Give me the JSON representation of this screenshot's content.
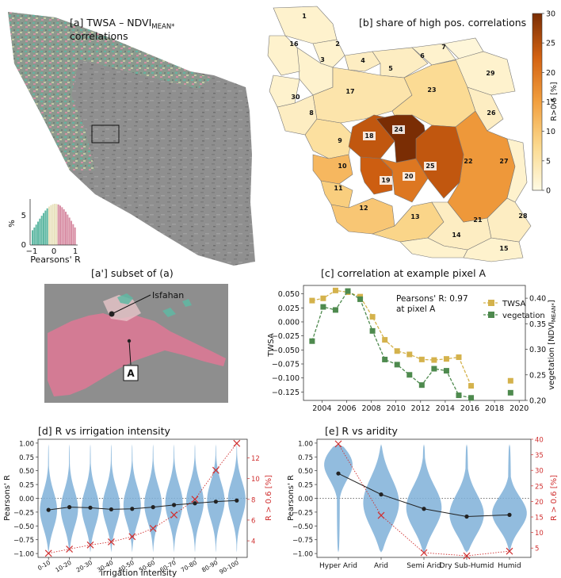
{
  "panels": {
    "a": {
      "title": "[a] TWSA – NDVI",
      "sub": "MEAN*",
      "line2": "correlations",
      "hist_ylabel": "%",
      "hist_ytick": "5",
      "hist_y0": "0",
      "hist_xticks": [
        "−1",
        "0",
        "1"
      ],
      "hist_xlabel": "Pearsons' R"
    },
    "b": {
      "title": "[b] share of high pos. correlations",
      "cbar_label": "R>0.6 [%]",
      "cbar_ticks": [
        "0",
        "5",
        "10",
        "15",
        "20",
        "25",
        "30"
      ]
    },
    "a2": {
      "title": "[a'] subset of (a)",
      "city": "Isfahan",
      "pixel": "A"
    },
    "c": {
      "title": "[c] correlation at example pixel A",
      "annot1": "Pearsons' R: 0.97",
      "annot2": "at pixel A",
      "ylabel": "TWSA",
      "y2label": "vegetation [NDVI",
      "y2sub": "MEAN*",
      "y2end": "]"
    },
    "d": {
      "title": "[d] R vs irrigation intensity",
      "ylabel": "Pearsons' R",
      "y2label": "R > 0.6 [%]",
      "xlabel": "irrigation intensity"
    },
    "e": {
      "title": "[e] R vs aridity",
      "ylabel": "Pearsons' R",
      "y2label": "R > 0.6 [%]"
    }
  },
  "colors": {
    "twsa": "#d4b24c",
    "veg": "#4e8a4e",
    "violin": "#7fb0d8",
    "median": "#222222",
    "share": "#d03030"
  },
  "regions": [
    {
      "id": "1",
      "v": 2
    },
    {
      "id": "2",
      "v": 2
    },
    {
      "id": "3",
      "v": 2
    },
    {
      "id": "4",
      "v": 3
    },
    {
      "id": "5",
      "v": 3
    },
    {
      "id": "6",
      "v": 2
    },
    {
      "id": "7",
      "v": 1
    },
    {
      "id": "8",
      "v": 3
    },
    {
      "id": "9",
      "v": 6
    },
    {
      "id": "10",
      "v": 12
    },
    {
      "id": "11",
      "v": 9
    },
    {
      "id": "12",
      "v": 10
    },
    {
      "id": "13",
      "v": 8
    },
    {
      "id": "14",
      "v": 2
    },
    {
      "id": "15",
      "v": 2
    },
    {
      "id": "16",
      "v": 2
    },
    {
      "id": "17",
      "v": 5
    },
    {
      "id": "18",
      "v": 24
    },
    {
      "id": "19",
      "v": 23
    },
    {
      "id": "20",
      "v": 20
    },
    {
      "id": "21",
      "v": 3
    },
    {
      "id": "22",
      "v": 16
    },
    {
      "id": "23",
      "v": 7
    },
    {
      "id": "24",
      "v": 30
    },
    {
      "id": "25",
      "v": 24
    },
    {
      "id": "26",
      "v": 3
    },
    {
      "id": "27",
      "v": 2
    },
    {
      "id": "28",
      "v": 3
    },
    {
      "id": "29",
      "v": 2
    },
    {
      "id": "30",
      "v": 2
    }
  ],
  "chart_data": [
    {
      "type": "line",
      "panel": "c",
      "title": "[c] correlation at example pixel A",
      "xticks": [
        2004,
        2006,
        2008,
        2010,
        2012,
        2014,
        2016,
        2018,
        2020
      ],
      "xlim": [
        2002.5,
        2020.5
      ],
      "ylabel": "TWSA",
      "ylim": [
        -0.14,
        0.065
      ],
      "yticks": [
        -0.125,
        -0.1,
        -0.075,
        -0.05,
        -0.025,
        0.0,
        0.025,
        0.05
      ],
      "ytick_labels": [
        "−0.125",
        "−0.100",
        "−0.075",
        "−0.050",
        "−0.025",
        "0.000",
        "0.025",
        "0.050"
      ],
      "y2label": "vegetation",
      "y2lim": [
        0.2,
        0.425
      ],
      "y2ticks": [
        0.2,
        0.25,
        0.3,
        0.35,
        0.4
      ],
      "y2tick_labels": [
        "0.20",
        "0.25",
        "0.30",
        "0.35",
        "0.40"
      ],
      "legend": "top-right",
      "series": [
        {
          "name": "TWSA",
          "axis": "left",
          "segments": [
            {
              "x": [
                2003.2,
                2004.1,
                2005.1,
                2006.1,
                2007.1,
                2008.1,
                2009.1,
                2010.1,
                2011.1,
                2012.1,
                2013.1,
                2014.1,
                2015.1,
                2016.1
              ],
              "y": [
                0.038,
                0.042,
                0.056,
                0.053,
                0.045,
                0.009,
                -0.032,
                -0.052,
                -0.058,
                -0.067,
                -0.068,
                -0.066,
                -0.063,
                -0.114
              ]
            },
            {
              "x": [
                2019.3
              ],
              "y": [
                -0.105
              ]
            }
          ]
        },
        {
          "name": "vegetation",
          "axis": "right",
          "segments": [
            {
              "x": [
                2003.2,
                2004.1,
                2005.1,
                2006.1,
                2007.1,
                2008.1,
                2009.1,
                2010.1,
                2011.1,
                2012.1,
                2013.1,
                2014.1,
                2015.1,
                2016.1
              ],
              "y": [
                0.316,
                0.383,
                0.377,
                0.414,
                0.398,
                0.336,
                0.28,
                0.27,
                0.25,
                0.23,
                0.262,
                0.258,
                0.21,
                0.205
              ]
            },
            {
              "x": [
                2019.3
              ],
              "y": [
                0.215
              ]
            }
          ]
        }
      ]
    },
    {
      "type": "violin",
      "panel": "d",
      "title": "[d] R vs irrigation intensity",
      "xlabel": "irrigation intensity",
      "categories": [
        "0-10",
        "10-20",
        "20-30",
        "30-40",
        "40-50",
        "50-60",
        "60-70",
        "70-80",
        "80-90",
        "90-100"
      ],
      "ylabel": "Pearsons' R",
      "ylim": [
        -1.07,
        1.07
      ],
      "yticks": [
        -1.0,
        -0.75,
        -0.5,
        -0.25,
        0.0,
        0.25,
        0.5,
        0.75,
        1.0
      ],
      "ytick_labels": [
        "−1.00",
        "−0.75",
        "−0.50",
        "−0.25",
        "0.00",
        "0.25",
        "0.50",
        "0.75",
        "1.00"
      ],
      "y2label": "R > 0.6 [%]",
      "y2lim": [
        2.4,
        13.8
      ],
      "y2ticks": [
        4,
        6,
        8,
        10,
        12
      ],
      "median_R": [
        -0.21,
        -0.16,
        -0.17,
        -0.2,
        -0.19,
        -0.16,
        -0.12,
        -0.09,
        -0.06,
        -0.04
      ],
      "share_R_gt_0_6": [
        2.8,
        3.2,
        3.6,
        3.9,
        4.4,
        5.2,
        6.5,
        8.0,
        10.8,
        13.4
      ],
      "violin_range": [
        [
          -0.98,
          0.98
        ],
        [
          -0.98,
          0.98
        ],
        [
          -0.98,
          0.98
        ],
        [
          -0.98,
          0.98
        ],
        [
          -0.98,
          0.98
        ],
        [
          -0.98,
          0.98
        ],
        [
          -0.98,
          0.98
        ],
        [
          -0.98,
          0.98
        ],
        [
          -0.98,
          0.98
        ],
        [
          -0.98,
          0.98
        ]
      ]
    },
    {
      "type": "violin",
      "panel": "e",
      "title": "[e] R vs aridity",
      "categories": [
        "Hyper Arid",
        "Arid",
        "Semi Arid",
        "Dry Sub-Humid",
        "Humid"
      ],
      "ylabel": "Pearsons' R",
      "ylim": [
        -1.07,
        1.07
      ],
      "yticks": [
        -1.0,
        -0.75,
        -0.5,
        -0.25,
        0.0,
        0.25,
        0.5,
        0.75,
        1.0
      ],
      "ytick_labels": [
        "−1.00",
        "−0.75",
        "−0.50",
        "−0.25",
        "0.00",
        "0.25",
        "0.50",
        "0.75",
        "1.00"
      ],
      "y2label": "R > 0.6 [%]",
      "y2lim": [
        2.0,
        40.0
      ],
      "y2ticks": [
        5,
        10,
        15,
        20,
        25,
        30,
        35,
        40
      ],
      "median_R": [
        0.45,
        0.07,
        -0.19,
        -0.33,
        -0.3
      ],
      "share_R_gt_0_6": [
        38.5,
        15.5,
        3.5,
        2.5,
        4.0
      ]
    }
  ]
}
